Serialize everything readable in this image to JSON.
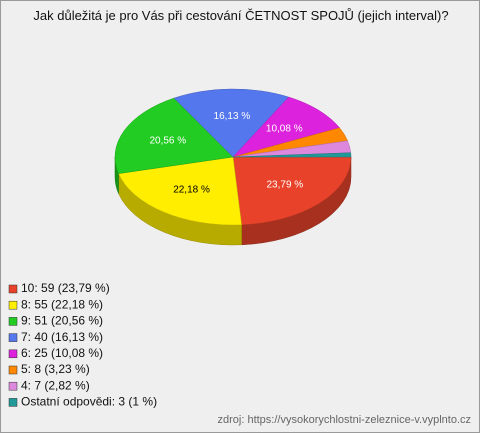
{
  "chart_data": {
    "type": "pie",
    "title": "Jak důležitá je pro Vás při cestování ČETNOST SPOJŮ (jejich interval)?",
    "categories": [
      "10: 59 (23,79 %)",
      "8: 55 (22,18 %)",
      "9: 51 (20,56 %)",
      "7: 40 (16,13 %)",
      "6: 25 (10,08 %)",
      "5: 8 (3,23 %)",
      "4: 7 (2,82 %)",
      "Ostatní odpovědi: 3 (1 %)"
    ],
    "values": [
      23.79,
      22.18,
      20.56,
      16.13,
      10.08,
      3.23,
      2.82,
      1
    ],
    "value_labels": [
      "23,79 %",
      "22,18 %",
      "20,56 %",
      "16,13 %",
      "10,08 %",
      null,
      null,
      null
    ],
    "colors": [
      "#e8432a",
      "#ffee00",
      "#22cc22",
      "#5577ee",
      "#dd22dd",
      "#ff8800",
      "#dd88dd",
      "#229999"
    ],
    "source": "zdroj: https://vysokorychlostni-zeleznice-v.vyplnto.cz"
  }
}
